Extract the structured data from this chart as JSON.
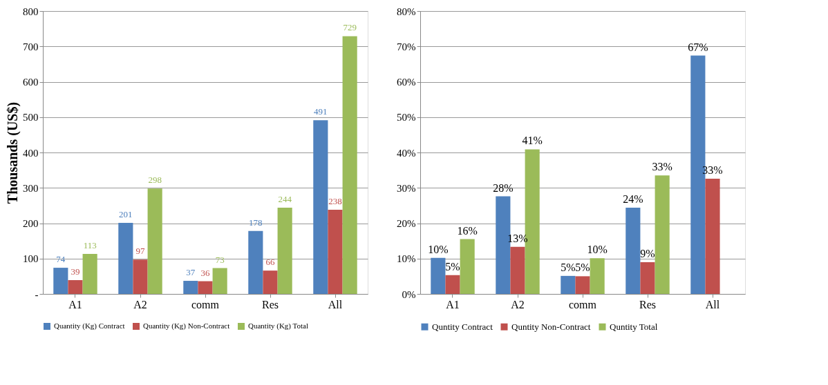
{
  "chart_data": [
    {
      "type": "bar",
      "ylabel": "Thousands (US$)",
      "categories": [
        "A1",
        "A2",
        "comm",
        "Res",
        "All"
      ],
      "series": [
        {
          "name": "Quantity (Kg) Contract",
          "color": "#4f81bd",
          "values": [
            74,
            201,
            37,
            178,
            491
          ]
        },
        {
          "name": "Quantity (Kg) Non-Contract",
          "color": "#c0504d",
          "values": [
            39,
            97,
            36,
            66,
            238
          ]
        },
        {
          "name": "Quantity (Kg) Total",
          "color": "#9bbb59",
          "values": [
            113,
            298,
            73,
            244,
            729
          ]
        }
      ],
      "ylim": [
        0,
        800
      ],
      "yticks": [
        {
          "value": 0,
          "label": "-"
        },
        100,
        200,
        300,
        400,
        500,
        600,
        700,
        800
      ],
      "grid": "y",
      "legend": "bottom",
      "data_labels": true
    },
    {
      "type": "bar",
      "categories": [
        "A1",
        "A2",
        "comm",
        "Res",
        "All"
      ],
      "series": [
        {
          "name": "Quntity Contract",
          "color": "#4f81bd",
          "values": [
            10.2,
            27.6,
            5.1,
            24.4,
            67.4
          ],
          "value_labels": [
            "10%",
            "28%",
            "5%",
            "24%",
            "67%"
          ]
        },
        {
          "name": "Quntity Non-Contract",
          "color": "#c0504d",
          "values": [
            5.3,
            13.3,
            5.0,
            9.0,
            32.6
          ],
          "value_labels": [
            "5%",
            "13%",
            "5%",
            "9%",
            "33%"
          ]
        },
        {
          "name": "Quntity Total",
          "color": "#9bbb59",
          "values": [
            15.5,
            40.9,
            10.1,
            33.5,
            null
          ],
          "value_labels": [
            "16%",
            "41%",
            "10%",
            "33%",
            null
          ]
        }
      ],
      "ylim": [
        0,
        80
      ],
      "yticks": [
        {
          "value": 0,
          "label": "0%"
        },
        {
          "value": 10,
          "label": "10%"
        },
        {
          "value": 20,
          "label": "20%"
        },
        {
          "value": 30,
          "label": "30%"
        },
        {
          "value": 40,
          "label": "40%"
        },
        {
          "value": 50,
          "label": "50%"
        },
        {
          "value": 60,
          "label": "60%"
        },
        {
          "value": 70,
          "label": "70%"
        },
        {
          "value": 80,
          "label": "80%"
        }
      ],
      "grid": "y",
      "legend": "bottom"
    }
  ]
}
